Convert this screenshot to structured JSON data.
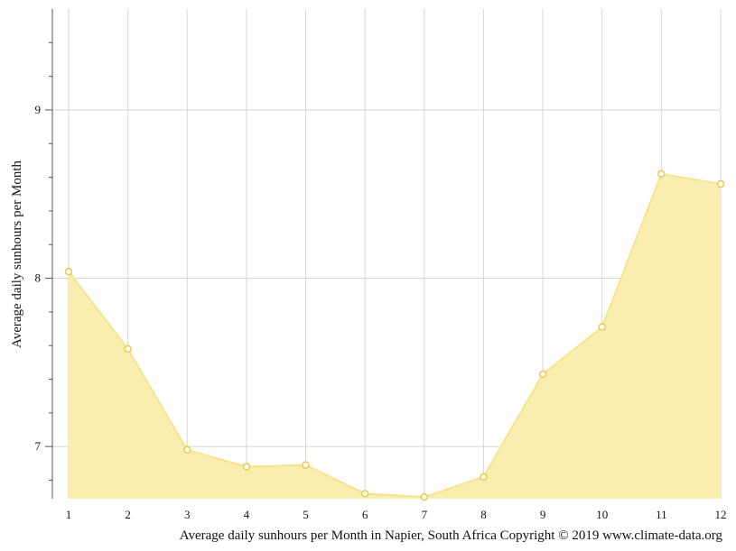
{
  "chart_data": {
    "type": "area",
    "x": [
      1,
      2,
      3,
      4,
      5,
      6,
      7,
      8,
      9,
      10,
      11,
      12
    ],
    "series": [
      {
        "values": [
          8.04,
          7.58,
          6.98,
          6.88,
          6.89,
          6.72,
          6.7,
          6.82,
          7.43,
          7.71,
          8.62,
          8.56
        ]
      }
    ],
    "ylabel": "Average daily sunhours per Month",
    "caption": "Average daily sunhours per Month in Napier, South Africa Copyright © 2019 www.climate-data.org",
    "xlim": [
      1,
      12
    ],
    "ylim": [
      6.69,
      9.6
    ],
    "yticks": [
      7,
      8,
      9
    ],
    "grid": true,
    "legend": "none",
    "colors": {
      "fill": "#f9eeb0",
      "line": "#f7e38a",
      "marker_stroke": "#eac94a",
      "grid": "#d6d6d6",
      "axis": "#555555"
    }
  }
}
